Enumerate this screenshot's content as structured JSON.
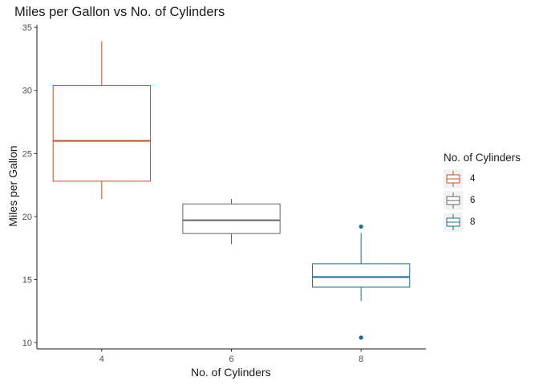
{
  "chart_data": {
    "type": "boxplot",
    "title": "Miles per Gallon vs No. of Cylinders",
    "xlabel": "No. of Cylinders",
    "ylabel": "Miles per Gallon",
    "ylim": [
      9.5,
      35.2
    ],
    "yticks": [
      10,
      15,
      20,
      25,
      30,
      35
    ],
    "grid": false,
    "legend": {
      "title": "No. of Cylinders",
      "placement": "right"
    },
    "categories": [
      "4",
      "6",
      "8"
    ],
    "colors": [
      "#c4502a",
      "#666666",
      "#1a6e8c"
    ],
    "series": [
      {
        "name": "4",
        "whisker_low": 21.4,
        "q1": 22.8,
        "median": 26.0,
        "q3": 30.4,
        "whisker_high": 33.9,
        "outliers": []
      },
      {
        "name": "6",
        "whisker_low": 17.8,
        "q1": 18.65,
        "median": 19.7,
        "q3": 21.0,
        "whisker_high": 21.4,
        "outliers": []
      },
      {
        "name": "8",
        "whisker_low": 13.3,
        "q1": 14.4,
        "median": 15.2,
        "q3": 16.25,
        "whisker_high": 18.7,
        "outliers": [
          19.2,
          10.4
        ]
      }
    ]
  }
}
